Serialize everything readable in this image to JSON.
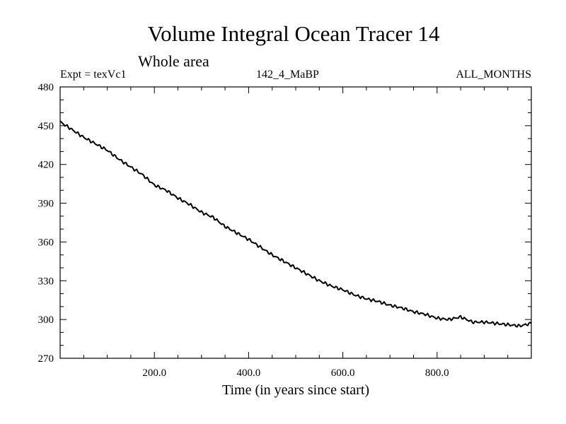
{
  "chart_data": {
    "type": "line",
    "title": "Volume Integral Ocean Tracer 14",
    "subtitle": "Whole area",
    "experiment_label": "Expt = texVc1",
    "run_label": "142_4_MaBP",
    "months_label": "ALL_MONTHS",
    "xlabel": "Time (in years since start)",
    "ylabel": "",
    "xlim": [
      0,
      1000
    ],
    "ylim": [
      270,
      480
    ],
    "x_ticks": [
      200,
      400,
      600,
      800
    ],
    "x_tick_labels": [
      "200.0",
      "400.0",
      "600.0",
      "800.0"
    ],
    "x_minor_step": 50,
    "y_ticks": [
      270,
      300,
      330,
      360,
      390,
      420,
      450,
      480
    ],
    "y_tick_labels": [
      "270",
      "300",
      "330",
      "360",
      "390",
      "420",
      "450",
      "480"
    ],
    "y_minor_step": 10,
    "grid": false,
    "series": [
      {
        "name": "Volume Integral Ocean Tracer 14",
        "x": [
          0,
          25,
          50,
          75,
          100,
          125,
          150,
          175,
          200,
          225,
          250,
          275,
          300,
          325,
          350,
          375,
          400,
          425,
          450,
          475,
          500,
          525,
          550,
          575,
          600,
          625,
          650,
          675,
          700,
          725,
          750,
          775,
          800,
          825,
          850,
          875,
          900,
          925,
          950,
          975,
          1000
        ],
        "values": [
          453,
          447,
          441,
          436,
          431,
          424,
          418,
          412,
          404,
          400,
          394,
          389,
          383,
          379,
          372,
          367,
          362,
          356,
          350,
          345,
          340,
          335,
          330,
          326,
          323,
          319,
          316,
          314,
          311,
          309,
          306,
          304,
          301,
          300,
          302,
          298,
          298,
          297,
          296,
          295,
          297
        ]
      }
    ]
  }
}
